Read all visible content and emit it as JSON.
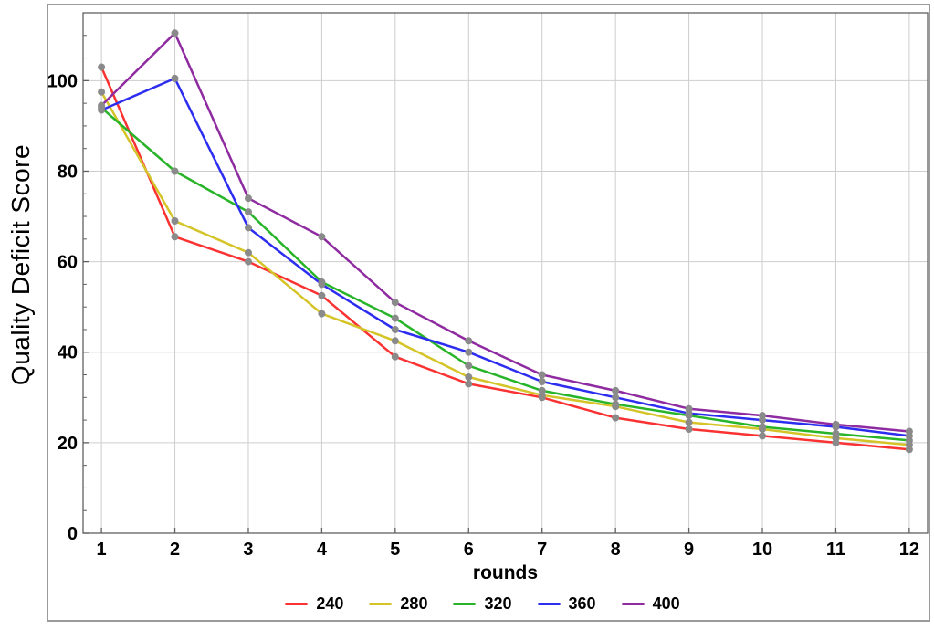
{
  "figure": {
    "background": "#ffffff",
    "border_color": "#9a9a9a",
    "frame_color": "#606060",
    "grid_color": "#cdcdcd",
    "tick_color": "#606060",
    "marker_color": "#8a8a8a",
    "text_color": "#000000"
  },
  "chart_data": {
    "type": "line",
    "title": "",
    "xlabel": "rounds",
    "ylabel": "Quality Deficit Score",
    "x": [
      1,
      2,
      3,
      4,
      5,
      6,
      7,
      8,
      9,
      10,
      11,
      12
    ],
    "xlim": [
      0.75,
      12.25
    ],
    "ylim": [
      0,
      115
    ],
    "yticks": [
      0,
      20,
      40,
      60,
      80,
      100
    ],
    "ytick_minor_step": 5,
    "grid": true,
    "legend_position": "bottom",
    "marker": "circle",
    "series": [
      {
        "name": "240",
        "color": "#fa3232",
        "values": [
          103,
          65.5,
          60,
          52.5,
          39,
          33,
          30,
          25.5,
          23,
          21.5,
          20,
          18.5
        ]
      },
      {
        "name": "280",
        "color": "#d4c428",
        "values": [
          97.5,
          69,
          62,
          48.5,
          42.5,
          34.5,
          30.5,
          28,
          24.5,
          23,
          21,
          19.5
        ]
      },
      {
        "name": "320",
        "color": "#28b428",
        "values": [
          94,
          80,
          71,
          55.5,
          47.5,
          37,
          31.5,
          28.5,
          26,
          23.5,
          22,
          20.5
        ]
      },
      {
        "name": "360",
        "color": "#2d2df0",
        "values": [
          93.5,
          100.5,
          67.5,
          55,
          45,
          40,
          33.5,
          30,
          26.5,
          25,
          23.5,
          21.5
        ]
      },
      {
        "name": "400",
        "color": "#8f2ba0",
        "values": [
          94.5,
          110.5,
          74,
          65.5,
          51,
          42.5,
          35,
          31.5,
          27.5,
          26,
          24,
          22.5
        ]
      }
    ]
  }
}
